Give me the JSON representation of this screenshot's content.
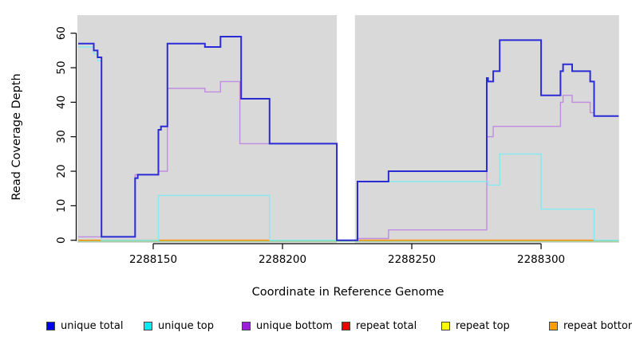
{
  "chart_data": {
    "type": "line",
    "style": "step",
    "title": "",
    "xlabel": "Coordinate in Reference Genome",
    "ylabel": "Read Coverage Depth",
    "x_ticks": [
      2288150,
      2288200,
      2288250,
      2288300
    ],
    "y_ticks": [
      0,
      10,
      20,
      30,
      40,
      50,
      60
    ],
    "xlim": [
      2288121,
      2288330
    ],
    "ylim": [
      0,
      63
    ],
    "gap_region": [
      2288221,
      2288228
    ],
    "panel_background": "#d9d9d9",
    "grid": false,
    "legend_position": "bottom",
    "series": [
      {
        "name": "unique total",
        "color": "#2b2bd5",
        "legend_color": "#0000ee",
        "width": 2,
        "segments": [
          [
            [
              2288121,
              57
            ],
            [
              2288127,
              55
            ],
            [
              2288128.5,
              53
            ],
            [
              2288130,
              1
            ],
            [
              2288143,
              18
            ],
            [
              2288144,
              19
            ],
            [
              2288152,
              32
            ],
            [
              2288153,
              33
            ],
            [
              2288155.5,
              57
            ],
            [
              2288170,
              56
            ],
            [
              2288176,
              59
            ],
            [
              2288184,
              41
            ],
            [
              2288195,
              28
            ],
            [
              2288221,
              0
            ],
            [
              2288229,
              17
            ],
            [
              2288241,
              20
            ],
            [
              2288279,
              47
            ],
            [
              2288279.5,
              46
            ],
            [
              2288281.5,
              49
            ],
            [
              2288284,
              58
            ],
            [
              2288300,
              42
            ],
            [
              2288307.5,
              49
            ],
            [
              2288308.5,
              51
            ],
            [
              2288312,
              49
            ],
            [
              2288319,
              46
            ],
            [
              2288320.5,
              36
            ],
            [
              2288330,
              36
            ]
          ]
        ]
      },
      {
        "name": "unique top",
        "color": "#86e8f0",
        "legend_color": "#00eeee",
        "width": 1.4,
        "segments": [
          [
            [
              2288121,
              56
            ],
            [
              2288127,
              54
            ],
            [
              2288128.5,
              52
            ],
            [
              2288130,
              0
            ],
            [
              2288152,
              13
            ],
            [
              2288195,
              0
            ],
            [
              2288229,
              17
            ],
            [
              2288279.5,
              16
            ],
            [
              2288284,
              25
            ],
            [
              2288300,
              9
            ],
            [
              2288320.5,
              0
            ],
            [
              2288330,
              0
            ]
          ]
        ]
      },
      {
        "name": "unique bottom",
        "color": "#bf8ce2",
        "legend_color": "#9b1fd8",
        "width": 1.4,
        "segments": [
          [
            [
              2288121,
              1
            ],
            [
              2288143,
              19
            ],
            [
              2288152,
              20
            ],
            [
              2288155.5,
              44
            ],
            [
              2288170,
              43
            ],
            [
              2288176,
              46
            ],
            [
              2288183.5,
              28
            ],
            [
              2288221,
              0
            ],
            [
              2288229,
              0.5
            ],
            [
              2288241,
              3
            ],
            [
              2288279,
              30
            ],
            [
              2288281.5,
              33
            ],
            [
              2288307.5,
              40
            ],
            [
              2288308.5,
              42
            ],
            [
              2288312,
              40
            ],
            [
              2288319,
              37
            ],
            [
              2288320.5,
              36
            ],
            [
              2288330,
              36
            ]
          ]
        ]
      },
      {
        "name": "repeat total",
        "color": "#dd3333",
        "legend_color": "#ee0000",
        "width": 1.2,
        "segments": [
          [
            [
              2288121,
              0
            ],
            [
              2288330,
              0
            ]
          ]
        ]
      },
      {
        "name": "repeat top",
        "color": "#e8e040",
        "legend_color": "#ffff00",
        "width": 1.2,
        "segments": [
          [
            [
              2288121,
              0
            ],
            [
              2288330,
              0
            ]
          ]
        ]
      },
      {
        "name": "repeat bottom",
        "color": "#ff9714",
        "legend_color": "#ffa000",
        "width": 1.6,
        "segments": [
          [
            [
              2288121,
              0
            ],
            [
              2288195,
              0
            ]
          ],
          [
            [
              2288229,
              0
            ],
            [
              2288321,
              0
            ]
          ]
        ]
      }
    ],
    "baseline": {
      "name": "zero baseline",
      "color": "#8ccf8c",
      "width": 1.4,
      "segments": [
        [
          [
            2288121,
            0
          ],
          [
            2288330,
            0
          ]
        ]
      ]
    }
  },
  "legend": {
    "items": [
      {
        "label": "unique total",
        "color": "#0000ee"
      },
      {
        "label": "unique top",
        "color": "#00eeee"
      },
      {
        "label": "unique bottom",
        "color": "#9b1fd8"
      },
      {
        "label": "repeat total",
        "color": "#ee0000"
      },
      {
        "label": "repeat top",
        "color": "#ffff00"
      },
      {
        "label": "repeat bottom",
        "color": "#ffa000"
      }
    ]
  }
}
